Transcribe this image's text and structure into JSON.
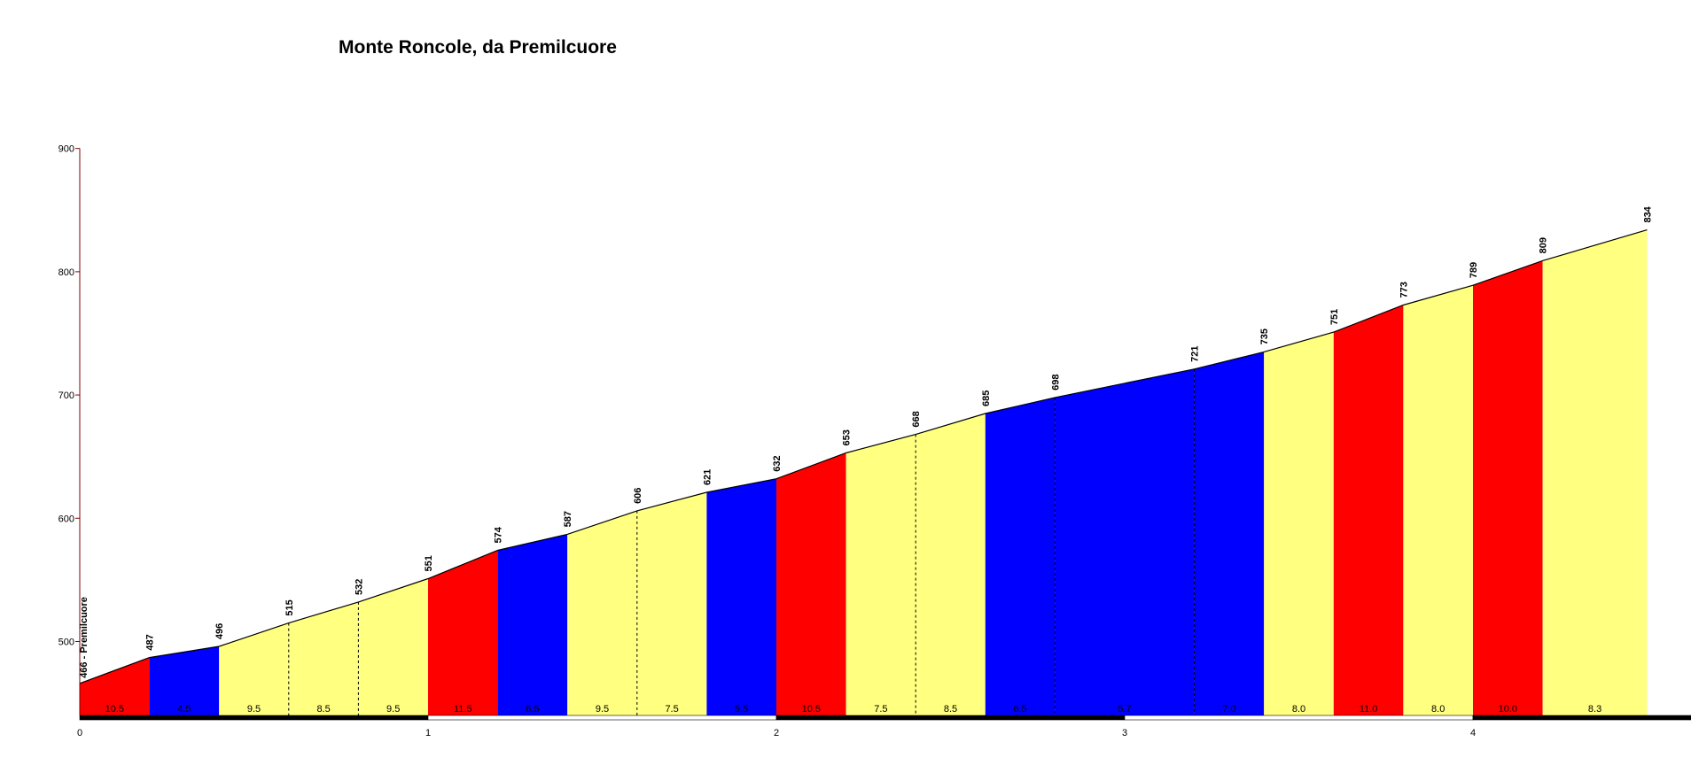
{
  "chart_data": {
    "type": "area",
    "title": "Monte Roncole, da Premilcuore",
    "xlabel": "",
    "ylabel": "",
    "xlim": [
      0,
      4.5
    ],
    "ylim": [
      440,
      900
    ],
    "x_ticks": [
      "0",
      "1",
      "2",
      "3",
      "4"
    ],
    "y_ticks": [
      "500",
      "600",
      "700",
      "800",
      "900"
    ],
    "grid": false,
    "start_label": "466 - Premilcuore",
    "points": [
      {
        "x": 0.0,
        "y": 466
      },
      {
        "x": 0.2,
        "y": 487
      },
      {
        "x": 0.4,
        "y": 496
      },
      {
        "x": 0.6,
        "y": 515
      },
      {
        "x": 0.8,
        "y": 532
      },
      {
        "x": 1.0,
        "y": 551
      },
      {
        "x": 1.2,
        "y": 574
      },
      {
        "x": 1.4,
        "y": 587
      },
      {
        "x": 1.6,
        "y": 606
      },
      {
        "x": 1.8,
        "y": 621
      },
      {
        "x": 2.0,
        "y": 632
      },
      {
        "x": 2.2,
        "y": 653
      },
      {
        "x": 2.4,
        "y": 668
      },
      {
        "x": 2.6,
        "y": 685
      },
      {
        "x": 2.8,
        "y": 698
      },
      {
        "x": 3.2,
        "y": 721
      },
      {
        "x": 3.4,
        "y": 735
      },
      {
        "x": 3.6,
        "y": 751
      },
      {
        "x": 3.8,
        "y": 773
      },
      {
        "x": 4.0,
        "y": 789
      },
      {
        "x": 4.2,
        "y": 809
      },
      {
        "x": 4.5,
        "y": 834
      }
    ],
    "elevation_labels": [
      "487",
      "496",
      "515",
      "532",
      "551",
      "574",
      "587",
      "606",
      "621",
      "632",
      "653",
      "668",
      "685",
      "698",
      "721",
      "735",
      "751",
      "773",
      "789",
      "809",
      "834"
    ],
    "segments": [
      {
        "x0": 0.0,
        "x1": 0.2,
        "grade": "10.5",
        "color": "#ff0000"
      },
      {
        "x0": 0.2,
        "x1": 0.4,
        "grade": "4.5",
        "color": "#0000ff"
      },
      {
        "x0": 0.4,
        "x1": 0.6,
        "grade": "9.5",
        "color": "#ffff80"
      },
      {
        "x0": 0.6,
        "x1": 0.8,
        "grade": "8.5",
        "color": "#ffff80"
      },
      {
        "x0": 0.8,
        "x1": 1.0,
        "grade": "9.5",
        "color": "#ffff80"
      },
      {
        "x0": 1.0,
        "x1": 1.2,
        "grade": "11.5",
        "color": "#ff0000"
      },
      {
        "x0": 1.2,
        "x1": 1.4,
        "grade": "6.5",
        "color": "#0000ff"
      },
      {
        "x0": 1.4,
        "x1": 1.6,
        "grade": "9.5",
        "color": "#ffff80"
      },
      {
        "x0": 1.6,
        "x1": 1.8,
        "grade": "7.5",
        "color": "#ffff80"
      },
      {
        "x0": 1.8,
        "x1": 2.0,
        "grade": "5.5",
        "color": "#0000ff"
      },
      {
        "x0": 2.0,
        "x1": 2.2,
        "grade": "10.5",
        "color": "#ff0000"
      },
      {
        "x0": 2.2,
        "x1": 2.4,
        "grade": "7.5",
        "color": "#ffff80"
      },
      {
        "x0": 2.4,
        "x1": 2.6,
        "grade": "8.5",
        "color": "#ffff80"
      },
      {
        "x0": 2.6,
        "x1": 2.8,
        "grade": "6.5",
        "color": "#0000ff"
      },
      {
        "x0": 2.8,
        "x1": 3.2,
        "grade": "5.7",
        "color": "#0000ff"
      },
      {
        "x0": 3.2,
        "x1": 3.4,
        "grade": "7.0",
        "color": "#0000ff"
      },
      {
        "x0": 3.4,
        "x1": 3.6,
        "grade": "8.0",
        "color": "#ffff80"
      },
      {
        "x0": 3.6,
        "x1": 3.8,
        "grade": "11.0",
        "color": "#ff0000"
      },
      {
        "x0": 3.8,
        "x1": 4.0,
        "grade": "8.0",
        "color": "#ffff80"
      },
      {
        "x0": 4.0,
        "x1": 4.2,
        "grade": "10.0",
        "color": "#ff0000"
      },
      {
        "x0": 4.2,
        "x1": 4.5,
        "grade": "8.3",
        "color": "#ffff80"
      }
    ],
    "km_bar": [
      {
        "x0": 0,
        "x1": 1,
        "color": "#000000"
      },
      {
        "x0": 1,
        "x1": 2,
        "color": "#ffffff"
      },
      {
        "x0": 2,
        "x1": 3,
        "color": "#000000"
      },
      {
        "x0": 3,
        "x1": 4,
        "color": "#ffffff"
      },
      {
        "x0": 4,
        "x1": 5,
        "color": "#000000"
      }
    ],
    "colors": {
      "steep": "#ff0000",
      "moderate": "#ffff80",
      "gentle": "#0000ff",
      "axis": "#800000"
    }
  }
}
